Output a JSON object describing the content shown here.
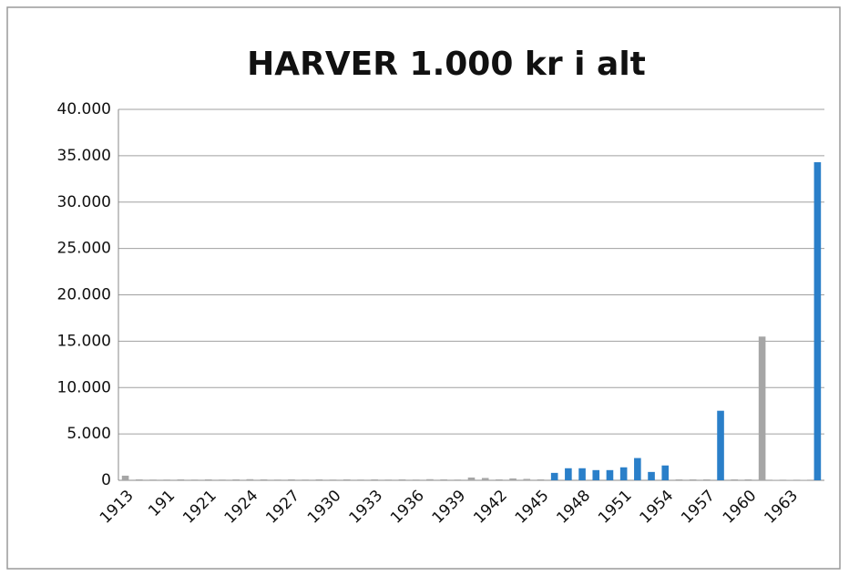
{
  "chart_data": {
    "type": "bar",
    "title": "HARVER 1.000 kr i alt",
    "categories": [
      "1913",
      null,
      null,
      "191",
      null,
      null,
      "1921",
      null,
      null,
      "1924",
      null,
      null,
      "1927",
      null,
      null,
      "1930",
      null,
      null,
      "1933",
      null,
      null,
      "1936",
      null,
      null,
      "1939",
      null,
      null,
      "1942",
      null,
      null,
      "1945",
      null,
      null,
      "1948",
      null,
      null,
      "1951",
      null,
      null,
      "1954",
      null,
      null,
      "1957",
      null,
      null,
      "1960",
      null,
      null,
      "1963",
      null,
      null
    ],
    "values": [
      500,
      100,
      80,
      80,
      100,
      80,
      100,
      80,
      100,
      120,
      100,
      80,
      100,
      80,
      100,
      80,
      100,
      80,
      100,
      80,
      100,
      80,
      120,
      100,
      80,
      300,
      250,
      100,
      200,
      150,
      100,
      800,
      1300,
      1300,
      1100,
      1100,
      1400,
      2400,
      900,
      1600,
      100,
      100,
      100,
      7500,
      100,
      100,
      15500,
      50,
      50,
      50,
      34300
    ],
    "colors": [
      "#a6a6a6",
      "#a6a6a6",
      "#a6a6a6",
      "#a6a6a6",
      "#a6a6a6",
      "#a6a6a6",
      "#a6a6a6",
      "#a6a6a6",
      "#a6a6a6",
      "#a6a6a6",
      "#a6a6a6",
      "#a6a6a6",
      "#a6a6a6",
      "#a6a6a6",
      "#a6a6a6",
      "#a6a6a6",
      "#a6a6a6",
      "#a6a6a6",
      "#a6a6a6",
      "#a6a6a6",
      "#a6a6a6",
      "#a6a6a6",
      "#a6a6a6",
      "#a6a6a6",
      "#a6a6a6",
      "#a6a6a6",
      "#a6a6a6",
      "#a6a6a6",
      "#a6a6a6",
      "#a6a6a6",
      "#a6a6a6",
      "#2a7fc9",
      "#2a7fc9",
      "#2a7fc9",
      "#2a7fc9",
      "#2a7fc9",
      "#2a7fc9",
      "#2a7fc9",
      "#2a7fc9",
      "#2a7fc9",
      "#a6a6a6",
      "#a6a6a6",
      "#a6a6a6",
      "#2a7fc9",
      "#a6a6a6",
      "#a6a6a6",
      "#a6a6a6",
      "#a6a6a6",
      "#a6a6a6",
      "#a6a6a6",
      "#2a7fc9"
    ],
    "ylim": [
      0,
      40000
    ],
    "yticks": [
      0,
      {
        "value": 5000,
        "label": "5.000"
      },
      {
        "value": 10000,
        "label": "10.000"
      },
      {
        "value": 15000,
        "label": "15.000"
      },
      {
        "value": 20000,
        "label": "20.000"
      },
      {
        "value": 25000,
        "label": "25.000"
      },
      {
        "value": 30000,
        "label": "30.000"
      },
      {
        "value": 35000,
        "label": "35.000"
      },
      {
        "value": 40000,
        "label": "40.000"
      }
    ],
    "grid": true
  }
}
